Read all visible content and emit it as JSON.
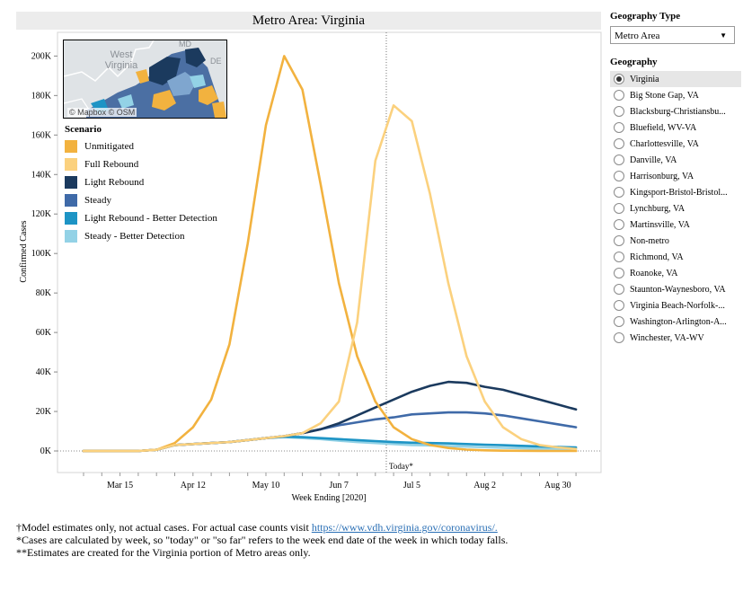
{
  "chart_data": {
    "type": "line",
    "title": "Metro Area: Virginia",
    "xlabel": "Week Ending [2020]",
    "ylabel": "Confirmed Cases",
    "ylim": [
      0,
      212000
    ],
    "yticks": [
      0,
      20000,
      40000,
      60000,
      80000,
      100000,
      120000,
      140000,
      160000,
      180000,
      200000
    ],
    "ytick_labels": [
      "0K",
      "20K",
      "40K",
      "60K",
      "80K",
      "100K",
      "120K",
      "140K",
      "160K",
      "180K",
      "200K"
    ],
    "x_start": "Feb 29",
    "x_step_weeks": 1,
    "xticks": [
      "Mar 15",
      "Apr 12",
      "May 10",
      "Jun 7",
      "Jul 5",
      "Aug 2",
      "Aug 30"
    ],
    "xtick_week_index": [
      2,
      6,
      10,
      14,
      18,
      22,
      26
    ],
    "today_label": "Today*",
    "today_week_index": 16.6,
    "legend_title": "Scenario",
    "legend_position": "top-left",
    "grid": false,
    "series": [
      {
        "name": "Unmitigated",
        "color": "#f2b23f",
        "values": [
          0,
          0,
          0,
          0,
          600,
          4000,
          12000,
          26000,
          54000,
          105000,
          165000,
          200000,
          183000,
          135000,
          85000,
          48000,
          25000,
          12000,
          6000,
          3000,
          1500,
          700,
          300,
          150,
          80,
          40,
          20,
          10
        ]
      },
      {
        "name": "Full Rebound",
        "color": "#fbd17e",
        "values": [
          0,
          0,
          0,
          0,
          600,
          3000,
          3500,
          4000,
          4500,
          5500,
          6500,
          7500,
          9000,
          14000,
          25000,
          65000,
          147000,
          175000,
          167000,
          130000,
          85000,
          48000,
          25000,
          12000,
          6000,
          3000,
          1800,
          1000
        ]
      },
      {
        "name": "Light Rebound",
        "color": "#1b3a5e",
        "values": [
          0,
          0,
          0,
          0,
          600,
          3000,
          3500,
          4000,
          4500,
          5500,
          6500,
          7500,
          9000,
          11000,
          14000,
          18000,
          22000,
          26000,
          30000,
          33000,
          35000,
          34500,
          32500,
          31000,
          28500,
          26000,
          23500,
          21000
        ]
      },
      {
        "name": "Steady",
        "color": "#3f6aa8",
        "values": [
          0,
          0,
          0,
          0,
          600,
          3000,
          3500,
          4000,
          4500,
          5500,
          6500,
          7500,
          9000,
          11000,
          13000,
          14500,
          16000,
          17000,
          18500,
          19000,
          19500,
          19500,
          19000,
          18000,
          16500,
          15000,
          13500,
          12000
        ]
      },
      {
        "name": "Light Rebound - Better Detection",
        "color": "#1d94c5",
        "values": [
          0,
          0,
          0,
          0,
          600,
          3000,
          3500,
          4000,
          4500,
          5500,
          6500,
          7200,
          7000,
          6500,
          6000,
          5500,
          5000,
          4500,
          4200,
          4000,
          3800,
          3500,
          3200,
          2900,
          2600,
          2300,
          2000,
          1800
        ]
      },
      {
        "name": "Steady - Better Detection",
        "color": "#93d2e6",
        "values": [
          0,
          0,
          0,
          0,
          600,
          3000,
          3500,
          4000,
          4500,
          5500,
          6500,
          7000,
          6500,
          6000,
          5200,
          4500,
          4000,
          3500,
          3000,
          2800,
          2500,
          2200,
          1900,
          1600,
          1400,
          1200,
          1100,
          1000
        ]
      }
    ]
  },
  "map": {
    "state_label": "West Virginia",
    "md_label": "MD",
    "de_label": "DE",
    "credit": "© Mapbox © OSM"
  },
  "side_panel": {
    "geography_type_label": "Geography Type",
    "geography_type_value": "Metro Area",
    "geography_label": "Geography",
    "options": [
      "Virginia",
      "Big Stone Gap, VA",
      "Blacksburg-Christiansbu...",
      "Bluefield, WV-VA",
      "Charlottesville, VA",
      "Danville, VA",
      "Harrisonburg, VA",
      "Kingsport-Bristol-Bristol...",
      "Lynchburg, VA",
      "Martinsville, VA",
      "Non-metro",
      "Richmond, VA",
      "Roanoke, VA",
      "Staunton-Waynesboro, VA",
      "Virginia Beach-Norfolk-...",
      "Washington-Arlington-A...",
      "Winchester, VA-WV"
    ],
    "selected_index": 0
  },
  "footnotes": {
    "line1_prefix": "†Model estimates only, not actual cases. For actual case counts visit ",
    "line1_link": "https://www.vdh.virginia.gov/coronavirus/.",
    "line2": "*Cases are calculated by week, so \"today\" or \"so far\" refers to the week end date of the week in which today falls.",
    "line3": "**Estimates are created for the Virginia portion of Metro areas only."
  }
}
